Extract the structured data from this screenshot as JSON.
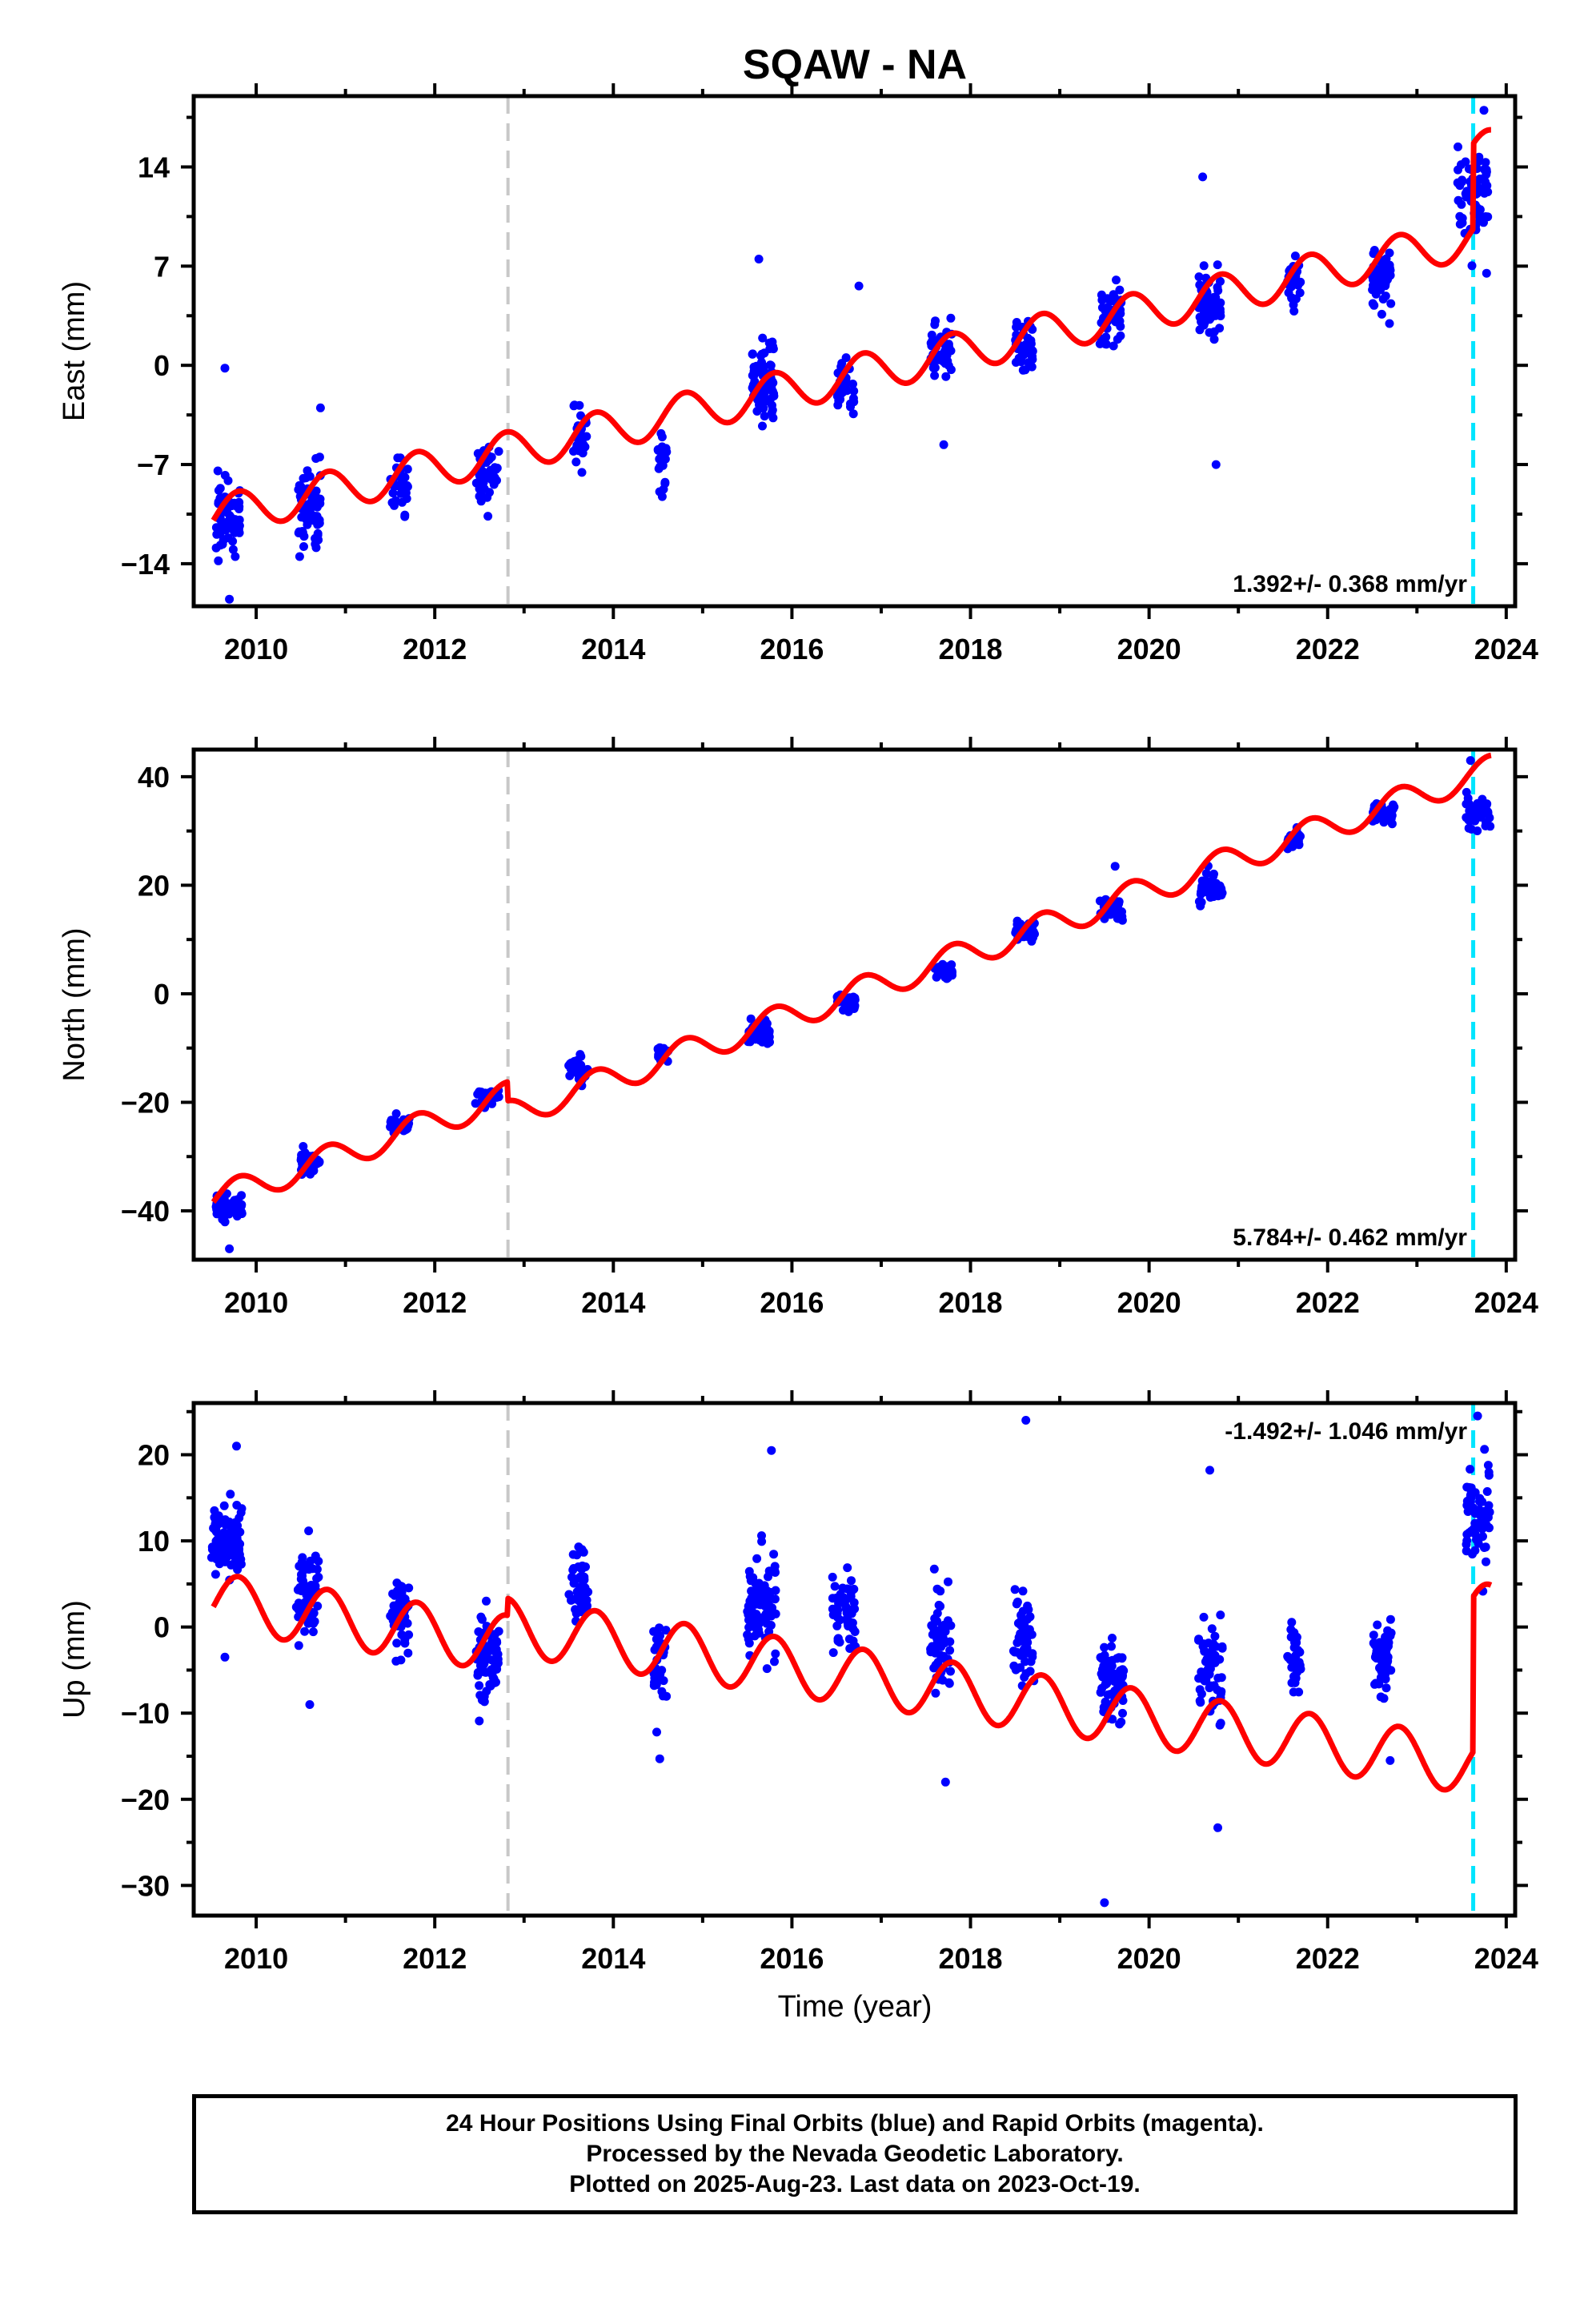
{
  "title": "SQAW - NA",
  "xlabel": "Time (year)",
  "footer": {
    "line1": "24 Hour Positions Using Final Orbits (blue) and Rapid Orbits (magenta).",
    "line2": "Processed by the Nevada Geodetic Laboratory.",
    "line3": "Plotted on 2025-Aug-23. Last data on 2023-Oct-19."
  },
  "colors": {
    "data": "#0000ff",
    "model": "#ff0000",
    "gray_line": "#c8c8c8",
    "cyan_line": "#00e5ff"
  },
  "chart_data": [
    {
      "type": "scatter",
      "ylabel": "East (mm)",
      "xlim": [
        2009.3,
        2024.1
      ],
      "ylim": [
        -17,
        19
      ],
      "xticks": [
        2010,
        2012,
        2014,
        2016,
        2018,
        2020,
        2022,
        2024
      ],
      "yticks": [
        -14,
        -7,
        0,
        7,
        14
      ],
      "rate_label": "1.392+/- 0.368 mm/yr",
      "vlines": {
        "gray": 2012.82,
        "cyan": 2023.63
      },
      "model": {
        "intercept": -10.7,
        "rate": 1.392,
        "amp": 1.4,
        "phase": 0.55,
        "offsets": [
          {
            "t": 2023.63,
            "dy": 6.0
          }
        ]
      },
      "clusters": [
        {
          "t0": 2009.55,
          "t1": 2009.82,
          "n": 70,
          "mean": -10.5,
          "spread": 2.4
        },
        {
          "t0": 2010.47,
          "t1": 2010.72,
          "n": 60,
          "mean": -10.3,
          "spread": 2.6
        },
        {
          "t0": 2011.5,
          "t1": 2011.7,
          "n": 30,
          "mean": -8.5,
          "spread": 1.8
        },
        {
          "t0": 2012.45,
          "t1": 2012.72,
          "n": 45,
          "mean": -7.8,
          "spread": 2.0
        },
        {
          "t0": 2013.55,
          "t1": 2013.7,
          "n": 30,
          "mean": -5.5,
          "spread": 1.8
        },
        {
          "t0": 2014.48,
          "t1": 2014.6,
          "n": 25,
          "mean": -6.8,
          "spread": 2.2
        },
        {
          "t0": 2015.55,
          "t1": 2015.8,
          "n": 80,
          "mean": -1.2,
          "spread": 2.4
        },
        {
          "t0": 2016.5,
          "t1": 2016.7,
          "n": 40,
          "mean": -1.5,
          "spread": 1.8
        },
        {
          "t0": 2017.55,
          "t1": 2017.8,
          "n": 45,
          "mean": 1.0,
          "spread": 1.8
        },
        {
          "t0": 2018.5,
          "t1": 2018.72,
          "n": 45,
          "mean": 1.5,
          "spread": 1.8
        },
        {
          "t0": 2019.45,
          "t1": 2019.7,
          "n": 55,
          "mean": 3.5,
          "spread": 1.8
        },
        {
          "t0": 2020.55,
          "t1": 2020.8,
          "n": 60,
          "mean": 4.5,
          "spread": 2.2
        },
        {
          "t0": 2021.55,
          "t1": 2021.7,
          "n": 35,
          "mean": 6.0,
          "spread": 1.5
        },
        {
          "t0": 2022.5,
          "t1": 2022.72,
          "n": 50,
          "mean": 5.8,
          "spread": 2.0
        },
        {
          "t0": 2023.45,
          "t1": 2023.8,
          "n": 60,
          "mean": 12.0,
          "spread": 3.0
        }
      ],
      "outliers": [
        [
          2009.65,
          -0.2
        ],
        [
          2009.7,
          -16.5
        ],
        [
          2010.72,
          -3.0
        ],
        [
          2015.63,
          7.5
        ],
        [
          2016.75,
          5.6
        ],
        [
          2017.7,
          -5.6
        ],
        [
          2020.6,
          13.3
        ],
        [
          2020.75,
          -7.0
        ],
        [
          2023.78,
          6.5
        ],
        [
          2023.75,
          18.0
        ]
      ]
    },
    {
      "type": "scatter",
      "ylabel": "North (mm)",
      "xlim": [
        2009.3,
        2024.1
      ],
      "ylim": [
        -49,
        45
      ],
      "xticks": [
        2010,
        2012,
        2014,
        2016,
        2018,
        2020,
        2022,
        2024
      ],
      "yticks": [
        -40,
        -20,
        0,
        20,
        40
      ],
      "rate_label": "5.784+/- 0.462 mm/yr",
      "vlines": {
        "gray": 2012.82,
        "cyan": 2023.63
      },
      "model": {
        "intercept": -38.0,
        "rate": 5.784,
        "amp": 2.6,
        "phase": 0.55,
        "offsets": [
          {
            "t": 2012.82,
            "dy": -3.5
          }
        ]
      },
      "clusters": [
        {
          "t0": 2009.55,
          "t1": 2009.85,
          "n": 70,
          "mean": -39.5,
          "spread": 2.0
        },
        {
          "t0": 2010.5,
          "t1": 2010.72,
          "n": 45,
          "mean": -31.0,
          "spread": 1.8
        },
        {
          "t0": 2011.5,
          "t1": 2011.72,
          "n": 35,
          "mean": -24.0,
          "spread": 1.6
        },
        {
          "t0": 2012.45,
          "t1": 2012.72,
          "n": 40,
          "mean": -19.0,
          "spread": 1.6
        },
        {
          "t0": 2013.5,
          "t1": 2013.72,
          "n": 35,
          "mean": -14.0,
          "spread": 1.6
        },
        {
          "t0": 2014.5,
          "t1": 2014.62,
          "n": 20,
          "mean": -11.0,
          "spread": 1.4
        },
        {
          "t0": 2015.5,
          "t1": 2015.75,
          "n": 55,
          "mean": -7.0,
          "spread": 2.0
        },
        {
          "t0": 2016.48,
          "t1": 2016.72,
          "n": 40,
          "mean": -1.5,
          "spread": 1.6
        },
        {
          "t0": 2017.6,
          "t1": 2017.8,
          "n": 40,
          "mean": 4.0,
          "spread": 1.8
        },
        {
          "t0": 2018.5,
          "t1": 2018.72,
          "n": 40,
          "mean": 11.5,
          "spread": 1.6
        },
        {
          "t0": 2019.45,
          "t1": 2019.72,
          "n": 45,
          "mean": 15.5,
          "spread": 1.8
        },
        {
          "t0": 2020.55,
          "t1": 2020.82,
          "n": 45,
          "mean": 19.5,
          "spread": 2.2
        },
        {
          "t0": 2021.55,
          "t1": 2021.7,
          "n": 30,
          "mean": 28.5,
          "spread": 1.4
        },
        {
          "t0": 2022.5,
          "t1": 2022.75,
          "n": 40,
          "mean": 33.5,
          "spread": 1.6
        },
        {
          "t0": 2023.55,
          "t1": 2023.82,
          "n": 50,
          "mean": 33.5,
          "spread": 2.8
        }
      ],
      "outliers": [
        [
          2009.7,
          -47.0
        ],
        [
          2019.62,
          23.5
        ],
        [
          2023.6,
          43.0
        ]
      ]
    },
    {
      "type": "scatter",
      "ylabel": "Up (mm)",
      "xlim": [
        2009.3,
        2024.1
      ],
      "ylim": [
        -33.5,
        26
      ],
      "xticks": [
        2010,
        2012,
        2014,
        2016,
        2018,
        2020,
        2022,
        2024
      ],
      "yticks": [
        -30,
        -20,
        -10,
        0,
        10,
        20
      ],
      "rate_label": "-1.492+/- 1.046 mm/yr",
      "vlines": {
        "gray": 2012.82,
        "cyan": 2023.63
      },
      "model": {
        "intercept": 3.0,
        "rate": -1.492,
        "amp": 3.3,
        "phase": 0.55,
        "offsets": [
          {
            "t": 2012.82,
            "dy": 2.0
          },
          {
            "t": 2023.63,
            "dy": 18.0
          }
        ]
      },
      "clusters": [
        {
          "t0": 2009.5,
          "t1": 2009.85,
          "n": 90,
          "mean": 10.0,
          "spread": 3.8
        },
        {
          "t0": 2010.45,
          "t1": 2010.7,
          "n": 60,
          "mean": 4.0,
          "spread": 4.5
        },
        {
          "t0": 2011.5,
          "t1": 2011.72,
          "n": 50,
          "mean": 1.5,
          "spread": 4.5
        },
        {
          "t0": 2012.45,
          "t1": 2012.72,
          "n": 70,
          "mean": -4.0,
          "spread": 5.0
        },
        {
          "t0": 2013.5,
          "t1": 2013.72,
          "n": 45,
          "mean": 4.5,
          "spread": 4.0
        },
        {
          "t0": 2014.45,
          "t1": 2014.6,
          "n": 35,
          "mean": -4.0,
          "spread": 6.0
        },
        {
          "t0": 2015.5,
          "t1": 2015.82,
          "n": 90,
          "mean": 2.0,
          "spread": 5.5
        },
        {
          "t0": 2016.45,
          "t1": 2016.72,
          "n": 55,
          "mean": 1.5,
          "spread": 4.5
        },
        {
          "t0": 2017.55,
          "t1": 2017.78,
          "n": 60,
          "mean": -3.0,
          "spread": 6.0
        },
        {
          "t0": 2018.48,
          "t1": 2018.72,
          "n": 55,
          "mean": -1.5,
          "spread": 5.0
        },
        {
          "t0": 2019.45,
          "t1": 2019.72,
          "n": 65,
          "mean": -6.0,
          "spread": 4.5
        },
        {
          "t0": 2020.55,
          "t1": 2020.82,
          "n": 60,
          "mean": -5.0,
          "spread": 5.5
        },
        {
          "t0": 2021.55,
          "t1": 2021.7,
          "n": 35,
          "mean": -3.5,
          "spread": 4.0
        },
        {
          "t0": 2022.5,
          "t1": 2022.72,
          "n": 50,
          "mean": -4.0,
          "spread": 4.0
        },
        {
          "t0": 2023.55,
          "t1": 2023.82,
          "n": 65,
          "mean": 13.0,
          "spread": 5.0
        }
      ],
      "outliers": [
        [
          2009.78,
          21.0
        ],
        [
          2009.65,
          -3.5
        ],
        [
          2010.6,
          -9.0
        ],
        [
          2014.52,
          -15.3
        ],
        [
          2015.77,
          20.5
        ],
        [
          2017.72,
          -18.0
        ],
        [
          2018.62,
          24.0
        ],
        [
          2019.5,
          -32.0
        ],
        [
          2020.68,
          18.2
        ],
        [
          2020.77,
          -23.3
        ],
        [
          2022.7,
          -15.5
        ],
        [
          2023.68,
          24.5
        ]
      ]
    }
  ]
}
